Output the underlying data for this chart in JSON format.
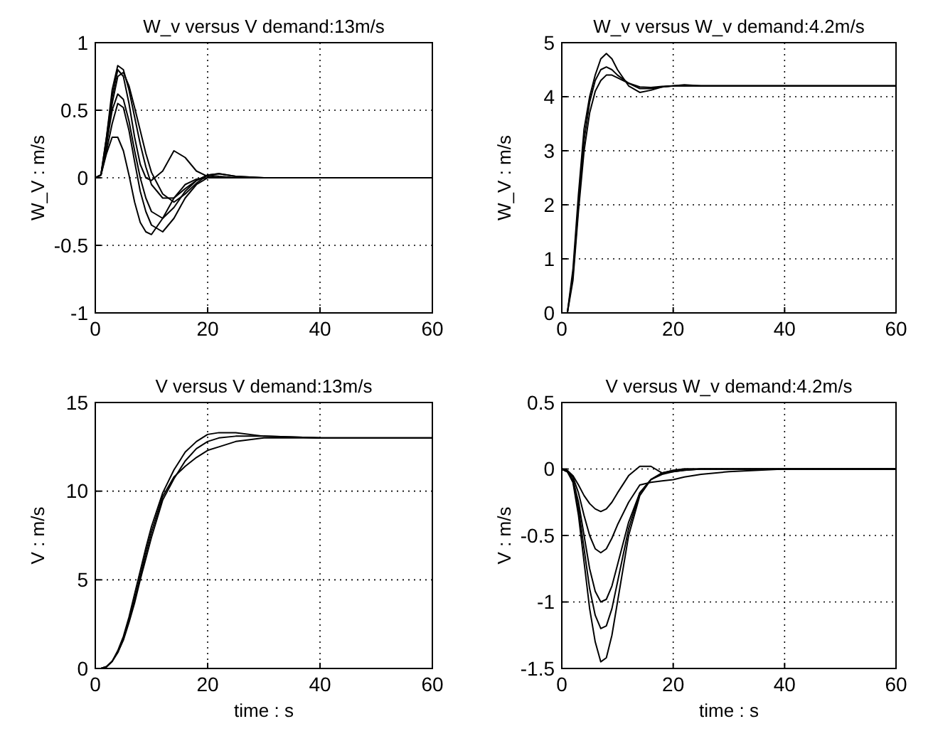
{
  "chart_data": [
    {
      "type": "line",
      "title": "W_v versus V demand:13m/s",
      "ylabel": "W_V : m/s",
      "xlim": [
        0,
        60
      ],
      "xticks": [
        0,
        20,
        40,
        60
      ],
      "ylim": [
        -1,
        1
      ],
      "yticks": [
        -1,
        -0.5,
        0,
        0.5,
        1
      ],
      "grid": true,
      "line_style": "solid",
      "x": [
        0,
        1,
        2,
        3,
        4,
        5,
        6,
        7,
        8,
        9,
        10,
        12,
        14,
        16,
        18,
        20,
        22,
        25,
        30,
        40,
        60
      ],
      "series": [
        {
          "color": "#000000",
          "values": [
            0,
            0.02,
            0.3,
            0.65,
            0.83,
            0.8,
            0.65,
            0.45,
            0.25,
            0.08,
            -0.05,
            -0.15,
            -0.15,
            -0.08,
            -0.02,
            0.02,
            0.03,
            0.01,
            0,
            0,
            0
          ]
        },
        {
          "color": "#000000",
          "values": [
            0,
            0.02,
            0.25,
            0.55,
            0.75,
            0.78,
            0.68,
            0.52,
            0.35,
            0.18,
            0.04,
            -0.12,
            -0.18,
            -0.12,
            -0.04,
            0.02,
            0.03,
            0.01,
            0,
            0,
            0
          ]
        },
        {
          "color": "#000000",
          "values": [
            0,
            0.02,
            0.3,
            0.6,
            0.8,
            0.75,
            0.55,
            0.3,
            0.1,
            0,
            -0.02,
            0.05,
            0.2,
            0.15,
            0.05,
            0.01,
            0,
            0,
            0,
            0,
            0
          ]
        },
        {
          "color": "#000000",
          "values": [
            0,
            0.02,
            0.25,
            0.5,
            0.62,
            0.58,
            0.42,
            0.2,
            0,
            -0.15,
            -0.25,
            -0.3,
            -0.22,
            -0.1,
            -0.02,
            0.02,
            0.01,
            0,
            0,
            0,
            0
          ]
        },
        {
          "color": "#000000",
          "values": [
            0,
            0.02,
            0.2,
            0.4,
            0.55,
            0.52,
            0.35,
            0.12,
            -0.1,
            -0.25,
            -0.35,
            -0.4,
            -0.3,
            -0.15,
            -0.05,
            0,
            0,
            0,
            0,
            0,
            0
          ]
        },
        {
          "color": "#000000",
          "values": [
            0,
            0.02,
            0.18,
            0.3,
            0.3,
            0.2,
            0.02,
            -0.18,
            -0.33,
            -0.4,
            -0.42,
            -0.3,
            -0.15,
            -0.05,
            -0.01,
            0,
            0,
            0,
            0,
            0,
            0
          ]
        }
      ]
    },
    {
      "type": "line",
      "title": "W_v versus W_v demand:4.2m/s",
      "ylabel": "W_V : m/s",
      "xlim": [
        0,
        60
      ],
      "xticks": [
        0,
        20,
        40,
        60
      ],
      "ylim": [
        0,
        5
      ],
      "yticks": [
        0,
        1,
        2,
        3,
        4,
        5
      ],
      "grid": true,
      "line_style": "solid",
      "x": [
        0,
        1,
        2,
        3,
        4,
        5,
        6,
        7,
        8,
        9,
        10,
        12,
        14,
        16,
        18,
        20,
        22,
        25,
        30,
        40,
        60
      ],
      "series": [
        {
          "color": "#000000",
          "values": [
            0,
            0,
            0.8,
            2.2,
            3.4,
            4.0,
            4.4,
            4.7,
            4.8,
            4.7,
            4.5,
            4.2,
            4.08,
            4.12,
            4.18,
            4.2,
            4.22,
            4.2,
            4.2,
            4.2,
            4.2
          ]
        },
        {
          "color": "#000000",
          "values": [
            0,
            0,
            0.7,
            2.0,
            3.2,
            3.9,
            4.3,
            4.5,
            4.55,
            4.5,
            4.4,
            4.25,
            4.15,
            4.15,
            4.18,
            4.2,
            4.2,
            4.2,
            4.2,
            4.2,
            4.2
          ]
        },
        {
          "color": "#000000",
          "values": [
            0,
            0,
            0.6,
            1.9,
            3.0,
            3.7,
            4.1,
            4.3,
            4.4,
            4.4,
            4.35,
            4.25,
            4.18,
            4.17,
            4.19,
            4.2,
            4.2,
            4.2,
            4.2,
            4.2,
            4.2
          ]
        }
      ]
    },
    {
      "type": "line",
      "title": "V versus V demand:13m/s",
      "xlabel": "time : s",
      "ylabel": "V : m/s",
      "xlim": [
        0,
        60
      ],
      "xticks": [
        0,
        20,
        40,
        60
      ],
      "ylim": [
        0,
        15
      ],
      "yticks": [
        0,
        5,
        10,
        15
      ],
      "grid": true,
      "line_style": "solid",
      "x": [
        0,
        1,
        2,
        3,
        4,
        5,
        6,
        7,
        8,
        9,
        10,
        12,
        14,
        16,
        18,
        20,
        22,
        25,
        30,
        40,
        60
      ],
      "series": [
        {
          "color": "#000000",
          "values": [
            0,
            0,
            0.1,
            0.4,
            1.0,
            1.8,
            2.9,
            4.2,
            5.5,
            6.8,
            8.0,
            9.9,
            11.2,
            12.2,
            12.8,
            13.2,
            13.3,
            13.3,
            13.1,
            13.0,
            13.0
          ]
        },
        {
          "color": "#000000",
          "x": [
            0,
            1,
            2,
            3,
            4,
            5,
            6,
            7,
            8,
            9,
            10,
            12,
            14,
            16,
            18,
            20,
            22,
            25,
            30,
            40
          ],
          "values": [
            0,
            0,
            0.1,
            0.4,
            0.9,
            1.7,
            2.7,
            3.9,
            5.2,
            6.5,
            7.7,
            9.7,
            10.8,
            11.4,
            11.9,
            12.3,
            12.5,
            12.8,
            13.0,
            13.0
          ]
        },
        {
          "color": "#000000",
          "x": [
            1,
            2,
            3,
            4,
            5,
            6,
            7,
            8,
            9,
            10,
            12,
            14,
            16,
            18,
            20,
            22,
            25,
            30,
            40,
            60
          ],
          "values": [
            0,
            0.1,
            0.4,
            0.9,
            1.6,
            2.6,
            3.7,
            5.0,
            6.2,
            7.4,
            9.5,
            10.7,
            11.7,
            12.4,
            12.8,
            13.0,
            13.1,
            13.1,
            13.0,
            13.0
          ]
        }
      ]
    },
    {
      "type": "line",
      "title": "V versus W_v demand:4.2m/s",
      "xlabel": "time : s",
      "ylabel": "V : m/s",
      "xlim": [
        0,
        60
      ],
      "xticks": [
        0,
        20,
        40,
        60
      ],
      "ylim": [
        -1.5,
        0.5
      ],
      "yticks": [
        -1.5,
        -1,
        -0.5,
        0,
        0.5
      ],
      "grid": true,
      "line_style": "solid",
      "x": [
        0,
        1,
        2,
        3,
        4,
        5,
        6,
        7,
        8,
        9,
        10,
        12,
        14,
        16,
        18,
        20,
        22,
        25,
        30,
        40,
        60
      ],
      "series": [
        {
          "color": "#000000",
          "values": [
            0,
            -0.02,
            -0.1,
            -0.35,
            -0.7,
            -1.05,
            -1.3,
            -1.45,
            -1.42,
            -1.25,
            -1.0,
            -0.5,
            -0.2,
            -0.08,
            -0.03,
            -0.01,
            0,
            0,
            0,
            0,
            0
          ]
        },
        {
          "color": "#000000",
          "values": [
            0,
            -0.02,
            -0.09,
            -0.3,
            -0.6,
            -0.9,
            -1.1,
            -1.2,
            -1.18,
            -1.05,
            -0.85,
            -0.45,
            -0.18,
            -0.08,
            -0.03,
            -0.01,
            0,
            0,
            0,
            0,
            0
          ]
        },
        {
          "color": "#000000",
          "values": [
            0,
            -0.02,
            -0.08,
            -0.25,
            -0.5,
            -0.75,
            -0.92,
            -1.0,
            -0.98,
            -0.88,
            -0.72,
            -0.4,
            -0.18,
            -0.08,
            -0.04,
            -0.02,
            -0.01,
            0,
            0,
            0,
            0
          ]
        },
        {
          "color": "#000000",
          "values": [
            0,
            -0.02,
            -0.06,
            -0.18,
            -0.35,
            -0.5,
            -0.6,
            -0.63,
            -0.6,
            -0.52,
            -0.42,
            -0.25,
            -0.12,
            -0.1,
            -0.09,
            -0.08,
            -0.06,
            -0.04,
            -0.02,
            0,
            0
          ]
        },
        {
          "color": "#000000",
          "values": [
            0,
            -0.01,
            -0.05,
            -0.12,
            -0.2,
            -0.26,
            -0.3,
            -0.32,
            -0.3,
            -0.25,
            -0.18,
            -0.05,
            0.02,
            0.02,
            -0.03,
            -0.02,
            -0.01,
            0,
            0,
            0,
            0
          ]
        }
      ]
    }
  ]
}
